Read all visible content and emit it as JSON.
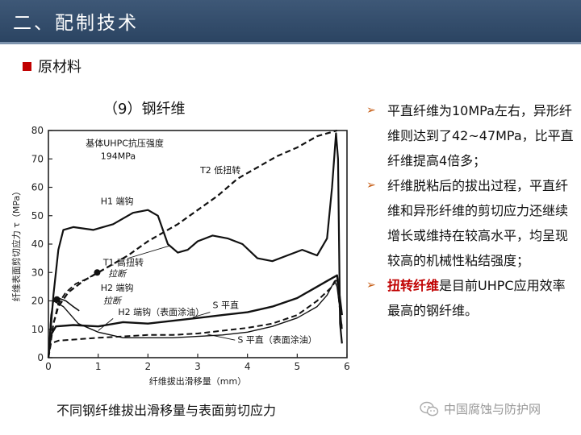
{
  "header": {
    "title": "二、配制技术"
  },
  "section": {
    "label": "原材料"
  },
  "chart_title": "（9）钢纤维",
  "caption": "不同钢纤维拔出滑移量与表面剪切应力",
  "bullets": [
    {
      "text": "平直纤维为10MPa左右，异形纤维则达到了42~47MPa，比平直纤维提高4倍多；"
    },
    {
      "text": "纤维脱粘后的拔出过程，平直纤维和异形纤维的剪切应力还继续增长或维持在较高水平，均呈现较高的机械性粘结强度；"
    },
    {
      "highlight": "扭转纤维",
      "rest": "是目前UHPC应用效率最高的钢纤维。"
    }
  ],
  "watermark": {
    "text": "中国腐蚀与防护网",
    "icon": "wechat-icon"
  },
  "chart_data": {
    "type": "line",
    "xlabel": "纤维拔出滑移量（mm）",
    "ylabel": "纤维表面剪切应力 τ（MPa）",
    "xlim": [
      0,
      6
    ],
    "ylim": [
      0,
      80
    ],
    "x_ticks": [
      "0",
      "1",
      "2",
      "3",
      "4",
      "5",
      "6"
    ],
    "y_ticks": [
      "0",
      "10",
      "20",
      "30",
      "40",
      "50",
      "60",
      "70",
      "80"
    ],
    "annotation_lines": [
      "基体UHPC抗压强度",
      "194MPa"
    ],
    "series": [
      {
        "name": "T2 低扭转",
        "style": "dashed",
        "width": 2.2,
        "points": [
          [
            0,
            0
          ],
          [
            0.1,
            12
          ],
          [
            0.2,
            18
          ],
          [
            0.4,
            23
          ],
          [
            0.7,
            27
          ],
          [
            1.0,
            30
          ],
          [
            1.3,
            33
          ],
          [
            1.6,
            36
          ],
          [
            2.0,
            41
          ],
          [
            2.3,
            44
          ],
          [
            2.6,
            47
          ],
          [
            3.0,
            52
          ],
          [
            3.4,
            57
          ],
          [
            3.8,
            63
          ],
          [
            4.2,
            67
          ],
          [
            4.6,
            71
          ],
          [
            5.0,
            74
          ],
          [
            5.4,
            78
          ],
          [
            5.8,
            80
          ]
        ]
      },
      {
        "name": "H1 端钩",
        "style": "solid",
        "width": 2.2,
        "points": [
          [
            0,
            0
          ],
          [
            0.1,
            22
          ],
          [
            0.2,
            38
          ],
          [
            0.3,
            45
          ],
          [
            0.5,
            46
          ],
          [
            0.9,
            45
          ],
          [
            1.3,
            47
          ],
          [
            1.7,
            51
          ],
          [
            2.0,
            52
          ],
          [
            2.2,
            50
          ],
          [
            2.4,
            40
          ],
          [
            2.6,
            37
          ],
          [
            2.8,
            38
          ],
          [
            3.0,
            41
          ],
          [
            3.3,
            43
          ],
          [
            3.6,
            42
          ],
          [
            3.9,
            40
          ],
          [
            4.2,
            35
          ],
          [
            4.5,
            34
          ],
          [
            4.8,
            36
          ],
          [
            5.1,
            38
          ],
          [
            5.4,
            36
          ],
          [
            5.6,
            42
          ],
          [
            5.7,
            60
          ],
          [
            5.78,
            79
          ],
          [
            5.82,
            70
          ],
          [
            5.86,
            12
          ],
          [
            5.9,
            5
          ]
        ]
      },
      {
        "name": "T1 高扭转",
        "end_label": "拉断",
        "style": "dashed",
        "width": 1.8,
        "points": [
          [
            0,
            0
          ],
          [
            0.1,
            12
          ],
          [
            0.2,
            19
          ],
          [
            0.35,
            23
          ],
          [
            0.55,
            26
          ],
          [
            0.8,
            28
          ],
          [
            0.98,
            30
          ]
        ]
      },
      {
        "name": "H2 端钩",
        "end_label": "拉断",
        "style": "solid",
        "width": 1.6,
        "points": [
          [
            0,
            0
          ],
          [
            0.05,
            14
          ],
          [
            0.1,
            20
          ],
          [
            0.2,
            21
          ],
          [
            0.35,
            20
          ],
          [
            0.5,
            18
          ],
          [
            0.62,
            16.5
          ]
        ]
      },
      {
        "name": "H2 端钩（表面涂油）",
        "style": "solid",
        "width": 1.4,
        "points": [
          [
            0,
            0
          ],
          [
            0.05,
            15
          ],
          [
            0.1,
            20
          ],
          [
            0.3,
            18
          ],
          [
            0.6,
            12
          ],
          [
            1.0,
            9
          ],
          [
            1.5,
            7
          ],
          [
            2.0,
            7
          ],
          [
            2.5,
            7
          ],
          [
            3.0,
            7.5
          ],
          [
            3.5,
            8
          ],
          [
            4.0,
            9
          ],
          [
            4.5,
            11
          ],
          [
            5.0,
            14
          ],
          [
            5.4,
            18
          ],
          [
            5.6,
            22
          ],
          [
            5.75,
            27
          ],
          [
            5.8,
            25
          ],
          [
            5.85,
            18
          ],
          [
            5.9,
            11
          ]
        ]
      },
      {
        "name": "S 平直",
        "style": "solid",
        "width": 2.4,
        "points": [
          [
            0,
            0
          ],
          [
            0.05,
            8
          ],
          [
            0.15,
            11
          ],
          [
            0.5,
            11.5
          ],
          [
            1.0,
            11
          ],
          [
            1.5,
            12.5
          ],
          [
            2.0,
            12
          ],
          [
            2.5,
            13
          ],
          [
            3.0,
            14
          ],
          [
            3.5,
            15
          ],
          [
            4.0,
            16
          ],
          [
            4.5,
            18
          ],
          [
            5.0,
            21
          ],
          [
            5.3,
            24
          ],
          [
            5.6,
            27
          ],
          [
            5.8,
            29
          ],
          [
            5.85,
            22
          ],
          [
            5.9,
            15
          ]
        ]
      },
      {
        "name": "S 平直（表面涂油）",
        "style": "dashed",
        "width": 2.0,
        "points": [
          [
            0,
            0
          ],
          [
            0.05,
            5
          ],
          [
            0.2,
            6
          ],
          [
            0.6,
            6.5
          ],
          [
            1.0,
            7
          ],
          [
            1.5,
            7.5
          ],
          [
            2.0,
            8
          ],
          [
            2.5,
            8
          ],
          [
            3.0,
            8.5
          ],
          [
            3.5,
            9.5
          ],
          [
            4.0,
            10.5
          ],
          [
            4.5,
            12
          ],
          [
            5.0,
            15
          ],
          [
            5.4,
            20
          ],
          [
            5.7,
            25
          ],
          [
            5.8,
            28
          ],
          [
            5.85,
            18
          ],
          [
            5.9,
            10
          ]
        ]
      }
    ],
    "markers": [
      {
        "series": "T1 高扭转",
        "x": 0.98,
        "y": 30
      },
      {
        "series": "H2 端钩",
        "x": 0.17,
        "y": 20.5
      }
    ]
  }
}
